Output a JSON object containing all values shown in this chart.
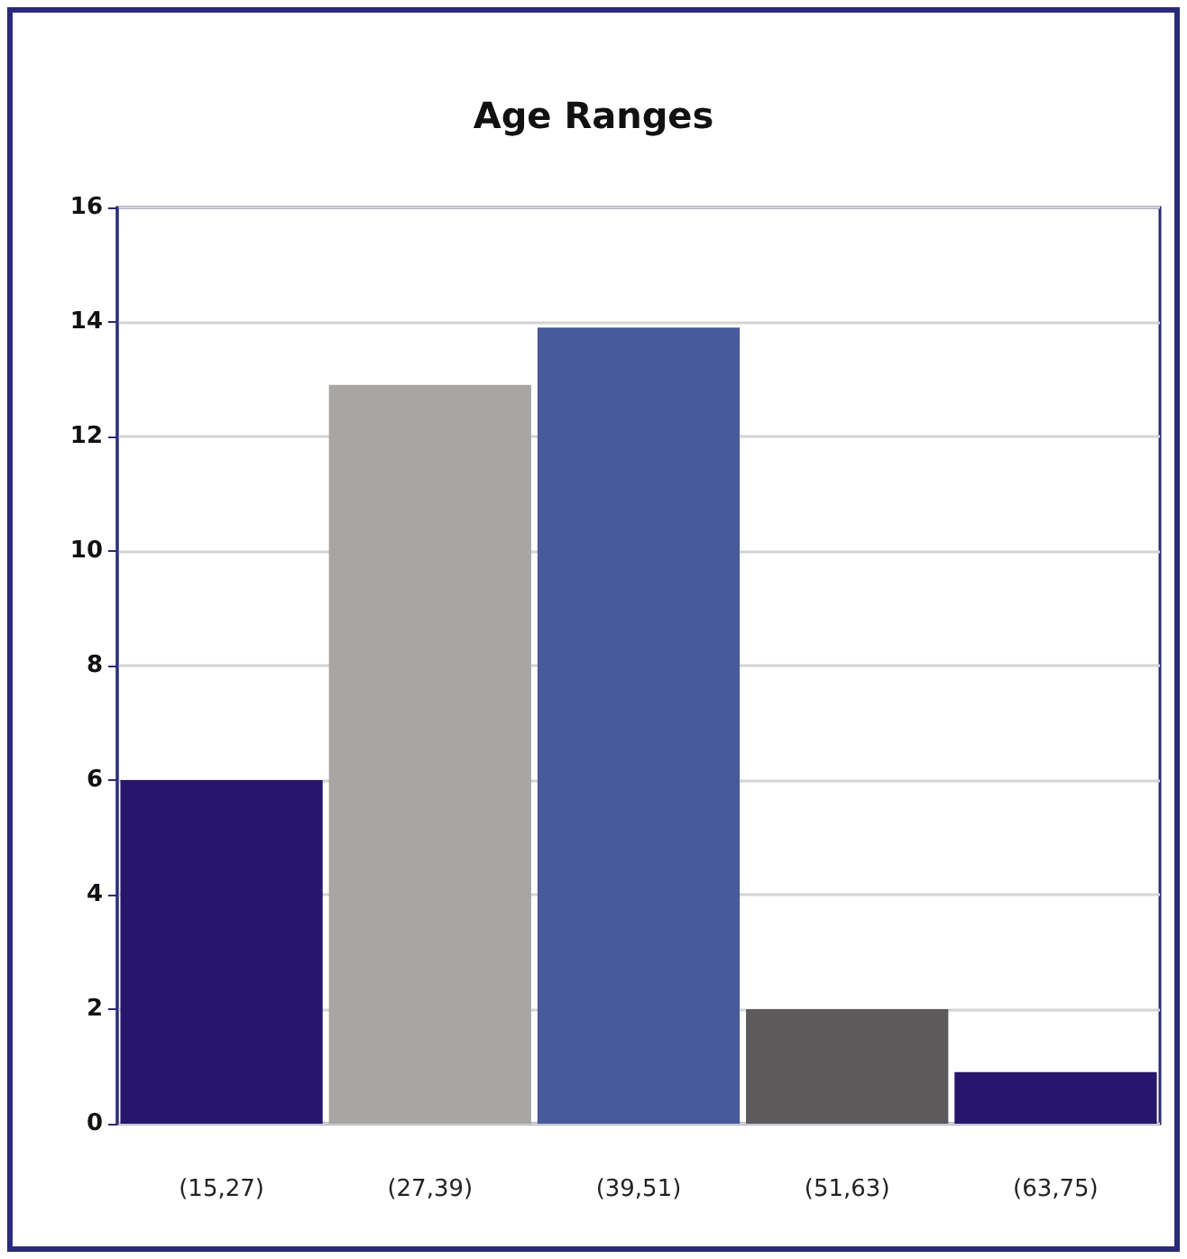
{
  "chart_data": {
    "type": "bar",
    "title": "Age Ranges",
    "categories": [
      "(15,27)",
      "(27,39)",
      "(39,51)",
      "(51,63)",
      "(63,75)"
    ],
    "values": [
      6,
      12.9,
      13.9,
      2,
      0.9
    ],
    "colors": [
      "#27166b",
      "#a8a5a5",
      "#485a9c",
      "#5c5a5a",
      "#27166b"
    ],
    "ylim": [
      0,
      16
    ],
    "yticks": [
      0,
      2,
      4,
      6,
      8,
      10,
      12,
      14,
      16
    ],
    "grid": "y"
  }
}
